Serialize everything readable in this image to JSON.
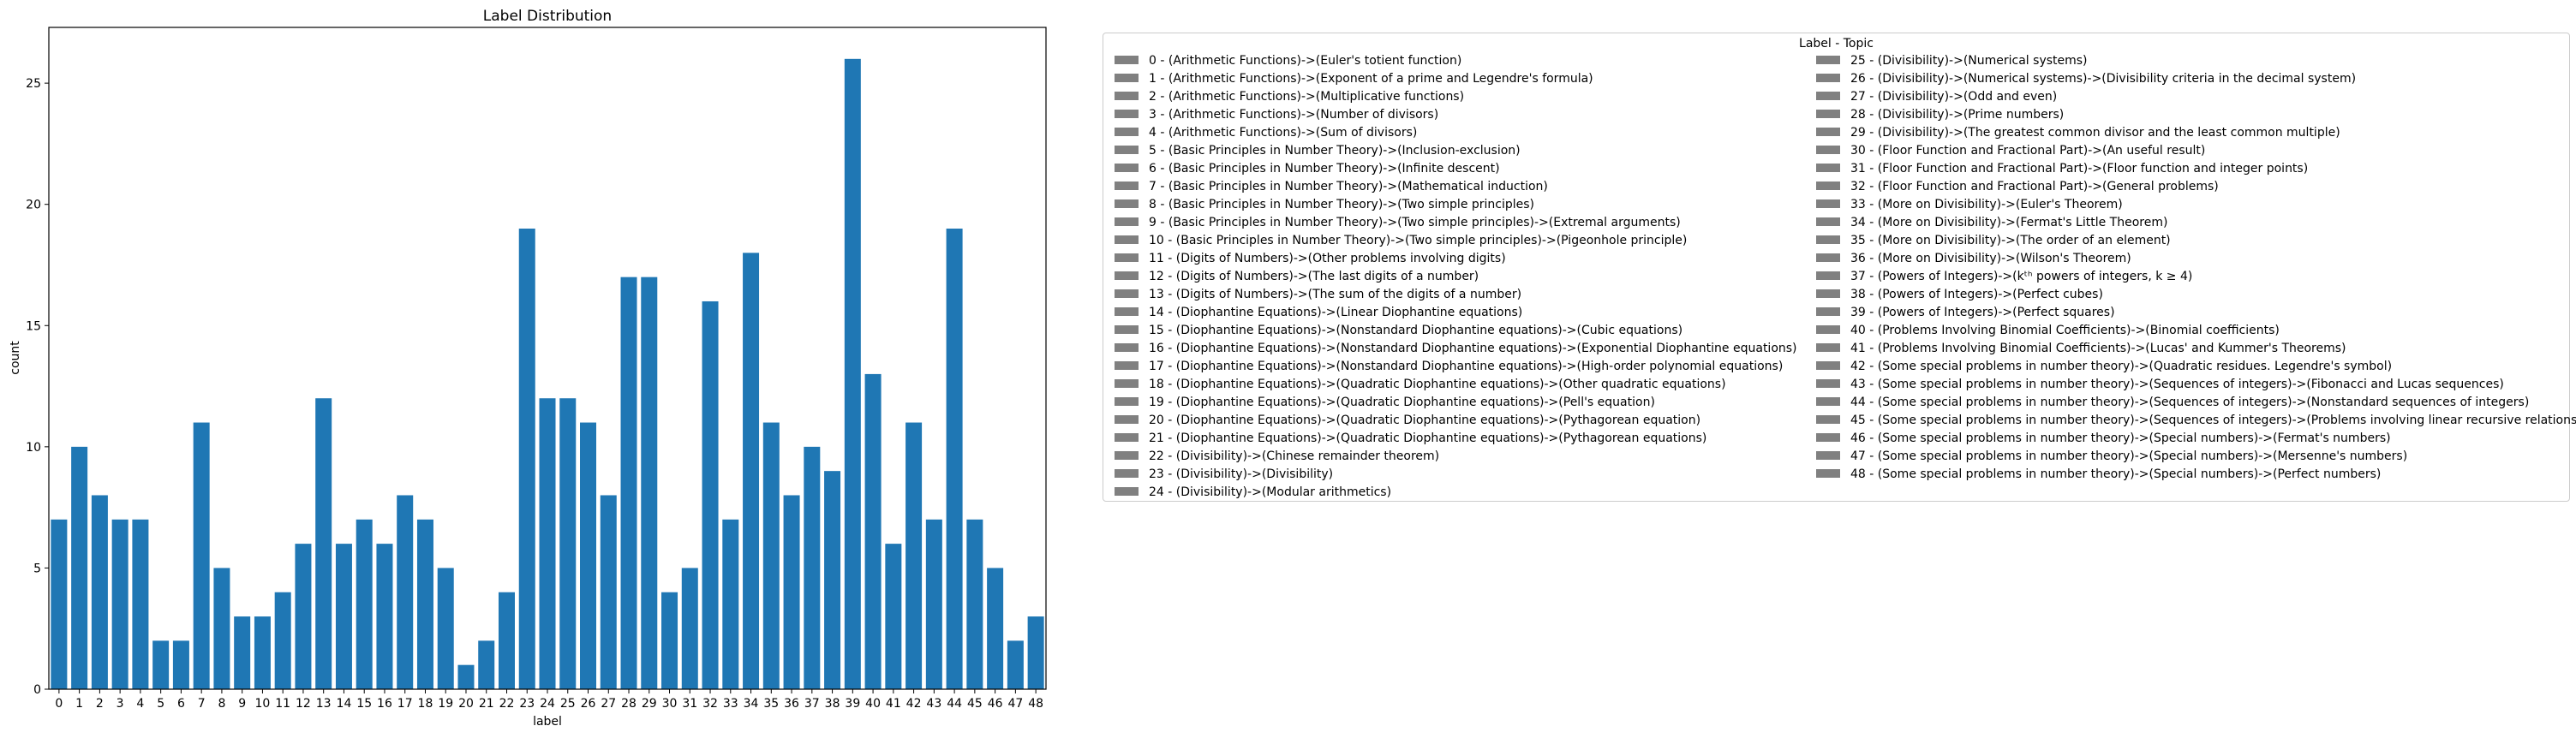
{
  "chart_data": {
    "type": "bar",
    "title": "Label Distribution",
    "xlabel": "label",
    "ylabel": "count",
    "ylim": [
      0,
      27.3
    ],
    "yticks": [
      0,
      5,
      10,
      15,
      20,
      25
    ],
    "grid": false,
    "bar_color": "#1f77b4",
    "categories": [
      "0",
      "1",
      "2",
      "3",
      "4",
      "5",
      "6",
      "7",
      "8",
      "9",
      "10",
      "11",
      "12",
      "13",
      "14",
      "15",
      "16",
      "17",
      "18",
      "19",
      "20",
      "21",
      "22",
      "23",
      "24",
      "25",
      "26",
      "27",
      "28",
      "29",
      "30",
      "31",
      "32",
      "33",
      "34",
      "35",
      "36",
      "37",
      "38",
      "39",
      "40",
      "41",
      "42",
      "43",
      "44",
      "45",
      "46",
      "47",
      "48"
    ],
    "values": [
      7,
      10,
      8,
      7,
      7,
      2,
      2,
      11,
      5,
      3,
      3,
      4,
      6,
      12,
      6,
      7,
      6,
      8,
      7,
      5,
      1,
      2,
      4,
      19,
      12,
      12,
      11,
      8,
      17,
      17,
      4,
      5,
      16,
      7,
      18,
      11,
      8,
      10,
      9,
      26,
      13,
      6,
      11,
      7,
      19,
      7,
      5,
      2,
      3
    ],
    "legend": {
      "title": "Label - Topic",
      "placement": "right of plot, upper",
      "swatch_color": "#808080",
      "entries": [
        "0 - (Arithmetic Functions)->(Euler's totient function)",
        "1 - (Arithmetic Functions)->(Exponent of a prime and Legendre's formula)",
        "2 - (Arithmetic Functions)->(Multiplicative functions)",
        "3 - (Arithmetic Functions)->(Number of divisors)",
        "4 - (Arithmetic Functions)->(Sum of divisors)",
        "5 - (Basic Principles in Number Theory)->(Inclusion-exclusion)",
        "6 - (Basic Principles in Number Theory)->(Infinite descent)",
        "7 - (Basic Principles in Number Theory)->(Mathematical induction)",
        "8 - (Basic Principles in Number Theory)->(Two simple principles)",
        "9 - (Basic Principles in Number Theory)->(Two simple principles)->(Extremal arguments)",
        "10 - (Basic Principles in Number Theory)->(Two simple principles)->(Pigeonhole principle)",
        "11 - (Digits of Numbers)->(Other problems involving digits)",
        "12 - (Digits of Numbers)->(The last digits of a number)",
        "13 - (Digits of Numbers)->(The sum of the digits of a number)",
        "14 - (Diophantine Equations)->(Linear Diophantine equations)",
        "15 - (Diophantine Equations)->(Nonstandard Diophantine equations)->(Cubic equations)",
        "16 - (Diophantine Equations)->(Nonstandard Diophantine equations)->(Exponential Diophantine equations)",
        "17 - (Diophantine Equations)->(Nonstandard Diophantine equations)->(High-order polynomial equations)",
        "18 - (Diophantine Equations)->(Quadratic Diophantine equations)->(Other quadratic equations)",
        "19 - (Diophantine Equations)->(Quadratic Diophantine equations)->(Pell's equation)",
        "20 - (Diophantine Equations)->(Quadratic Diophantine equations)->(Pythagorean equation)",
        "21 - (Diophantine Equations)->(Quadratic Diophantine equations)->(Pythagorean equations)",
        "22 - (Divisibility)->(Chinese remainder theorem)",
        "23 - (Divisibility)->(Divisibility)",
        "24 - (Divisibility)->(Modular arithmetics)",
        "25 - (Divisibility)->(Numerical systems)",
        "26 - (Divisibility)->(Numerical systems)->(Divisibility criteria in the decimal system)",
        "27 - (Divisibility)->(Odd and even)",
        "28 - (Divisibility)->(Prime numbers)",
        "29 - (Divisibility)->(The greatest common divisor and the least common multiple)",
        "30 - (Floor Function and Fractional Part)->(An useful result)",
        "31 - (Floor Function and Fractional Part)->(Floor function and integer points)",
        "32 - (Floor Function and Fractional Part)->(General problems)",
        "33 - (More on Divisibility)->(Euler's Theorem)",
        "34 - (More on Divisibility)->(Fermat's Little Theorem)",
        "35 - (More on Divisibility)->(The order of an element)",
        "36 - (More on Divisibility)->(Wilson's Theorem)",
        "37 - (Powers of Integers)->(kᵗʰ powers of integers, k ≥ 4)",
        "38 - (Powers of Integers)->(Perfect cubes)",
        "39 - (Powers of Integers)->(Perfect squares)",
        "40 - (Problems Involving Binomial Coefficients)->(Binomial coefficients)",
        "41 - (Problems Involving Binomial Coefficients)->(Lucas' and Kummer's Theorems)",
        "42 - (Some special problems in number theory)->(Quadratic residues. Legendre's symbol)",
        "43 - (Some special problems in number theory)->(Sequences of integers)->(Fibonacci and Lucas sequences)",
        "44 - (Some special problems in number theory)->(Sequences of integers)->(Nonstandard sequences of integers)",
        "45 - (Some special problems in number theory)->(Sequences of integers)->(Problems involving linear recursive relations)",
        "46 - (Some special problems in number theory)->(Special numbers)->(Fermat's numbers)",
        "47 - (Some special problems in number theory)->(Special numbers)->(Mersenne's numbers)",
        "48 - (Some special problems in number theory)->(Special numbers)->(Perfect numbers)"
      ]
    }
  }
}
